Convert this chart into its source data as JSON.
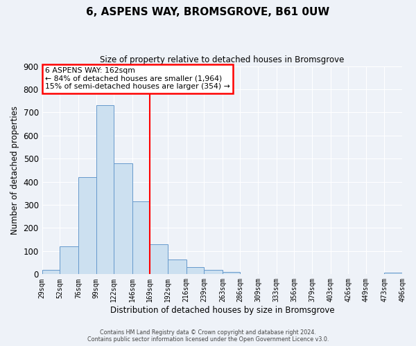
{
  "title": "6, ASPENS WAY, BROMSGROVE, B61 0UW",
  "subtitle": "Size of property relative to detached houses in Bromsgrove",
  "xlabel": "Distribution of detached houses by size in Bromsgrove",
  "ylabel": "Number of detached properties",
  "bar_color": "#cce0f0",
  "bar_edge_color": "#6699cc",
  "background_color": "#eef2f8",
  "grid_color": "#ffffff",
  "vline_x": 169,
  "vline_color": "red",
  "bin_labels": [
    "29sqm",
    "52sqm",
    "76sqm",
    "99sqm",
    "122sqm",
    "146sqm",
    "169sqm",
    "192sqm",
    "216sqm",
    "239sqm",
    "263sqm",
    "286sqm",
    "309sqm",
    "333sqm",
    "356sqm",
    "379sqm",
    "403sqm",
    "426sqm",
    "449sqm",
    "473sqm",
    "496sqm"
  ],
  "bin_edges": [
    29,
    52,
    76,
    99,
    122,
    146,
    169,
    192,
    216,
    239,
    263,
    286,
    309,
    333,
    356,
    379,
    403,
    426,
    449,
    473,
    496
  ],
  "bar_heights": [
    20,
    120,
    420,
    730,
    480,
    315,
    130,
    65,
    30,
    20,
    10,
    0,
    0,
    0,
    0,
    0,
    0,
    0,
    0,
    8,
    0
  ],
  "ylim": [
    0,
    900
  ],
  "yticks": [
    0,
    100,
    200,
    300,
    400,
    500,
    600,
    700,
    800,
    900
  ],
  "annotation_title": "6 ASPENS WAY: 162sqm",
  "annotation_line1": "← 84% of detached houses are smaller (1,964)",
  "annotation_line2": "15% of semi-detached houses are larger (354) →",
  "annotation_box_color": "white",
  "annotation_box_edge_color": "red",
  "footer_line1": "Contains HM Land Registry data © Crown copyright and database right 2024.",
  "footer_line2": "Contains public sector information licensed under the Open Government Licence v3.0."
}
